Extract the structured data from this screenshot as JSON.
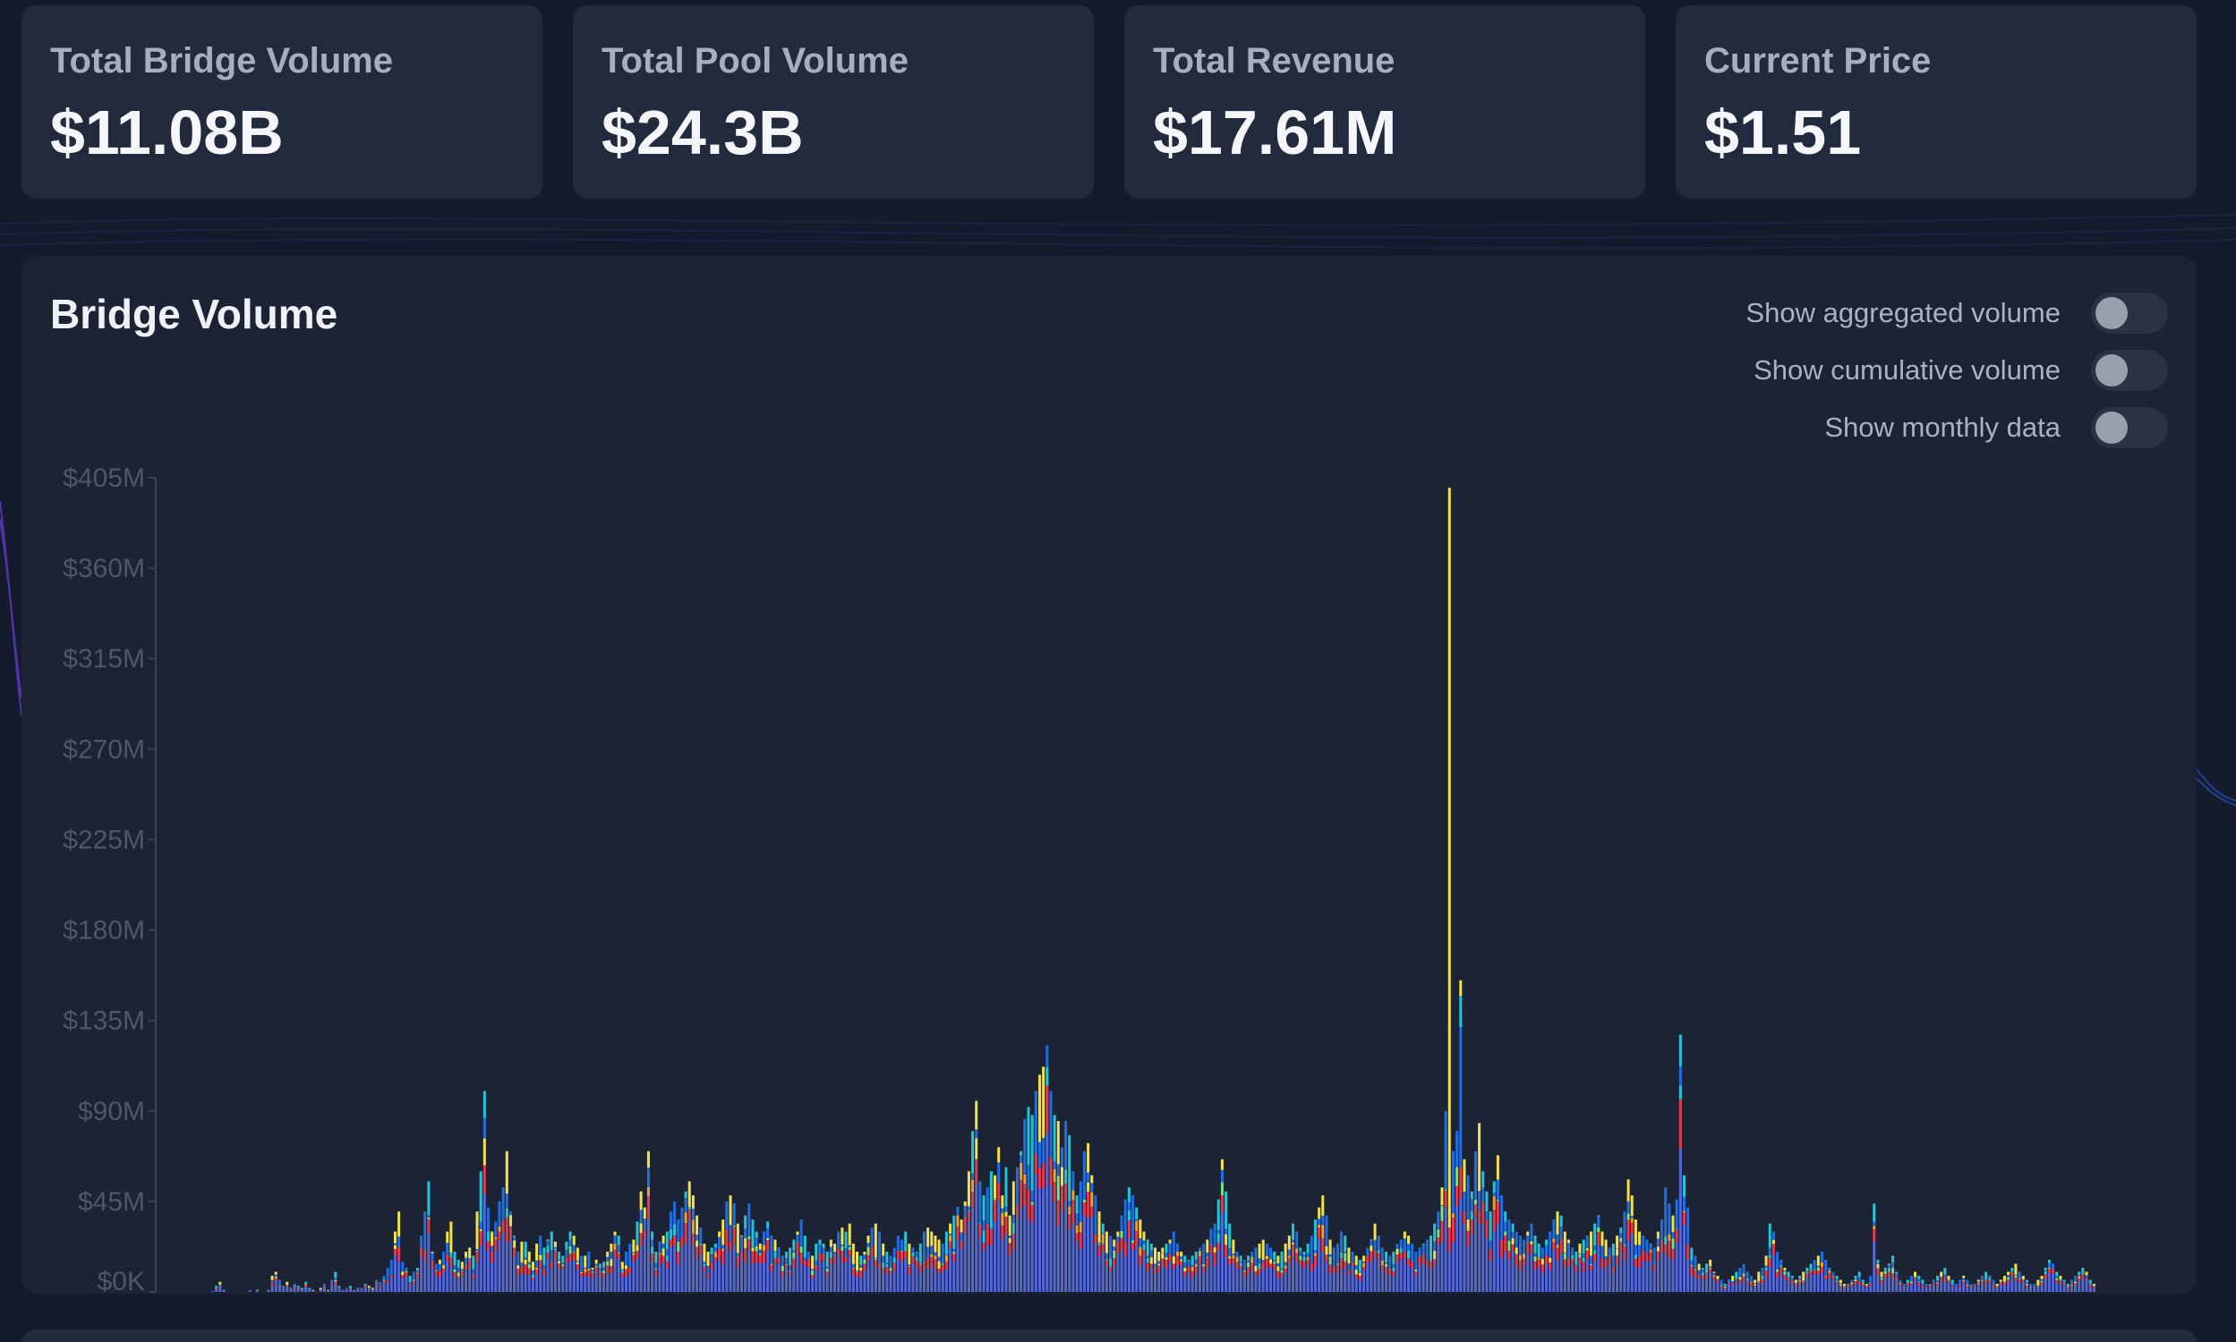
{
  "stats": [
    {
      "label": "Total Bridge Volume",
      "value": "$11.08B"
    },
    {
      "label": "Total Pool Volume",
      "value": "$24.3B"
    },
    {
      "label": "Total Revenue",
      "value": "$17.61M"
    },
    {
      "label": "Current Price",
      "value": "$1.51"
    }
  ],
  "chart": {
    "title": "Bridge Volume",
    "toggles": [
      {
        "label": "Show aggregated volume",
        "on": false
      },
      {
        "label": "Show cumulative volume",
        "on": false
      },
      {
        "label": "Show monthly data",
        "on": false
      }
    ]
  },
  "colors": {
    "background": "#141b2d",
    "card": "#222a3d",
    "chart_card": "#1c2334",
    "series": [
      "#5468d6",
      "#e53a4c",
      "#f0a030",
      "#f2e14a",
      "#1f6fe0",
      "#22c4d8",
      "#7fe07f",
      "#343c4e"
    ]
  },
  "chart_data": {
    "type": "bar",
    "stacked": true,
    "title": "Bridge Volume",
    "xlabel": "",
    "ylabel": "",
    "ylim": [
      0,
      405000000
    ],
    "y_ticks": [
      "$0K",
      "$45M",
      "$90M",
      "$135M",
      "$180M",
      "$225M",
      "$270M",
      "$315M",
      "$360M",
      "$405M"
    ],
    "grid": false,
    "unit": "USD",
    "bars_total_millions": [
      0.5,
      3,
      5,
      1,
      0,
      0,
      0,
      0,
      0,
      0,
      1,
      0,
      1,
      0,
      0,
      1,
      8,
      10,
      6,
      3,
      5,
      2,
      4,
      3,
      2,
      5,
      2,
      1,
      0,
      2,
      4,
      1,
      6,
      10,
      3,
      1,
      2,
      3,
      1,
      2,
      2,
      4,
      3,
      2,
      6,
      5,
      8,
      12,
      16,
      30,
      40,
      15,
      12,
      8,
      10,
      12,
      28,
      40,
      55,
      20,
      14,
      16,
      20,
      30,
      35,
      20,
      16,
      15,
      20,
      22,
      18,
      40,
      60,
      100,
      42,
      30,
      35,
      45,
      52,
      70,
      40,
      28,
      20,
      25,
      25,
      20,
      15,
      24,
      28,
      22,
      26,
      30,
      25,
      20,
      18,
      25,
      30,
      28,
      22,
      18,
      18,
      20,
      12,
      16,
      14,
      15,
      20,
      24,
      30,
      28,
      15,
      20,
      24,
      26,
      35,
      50,
      42,
      70,
      30,
      20,
      25,
      28,
      30,
      40,
      45,
      36,
      42,
      50,
      55,
      48,
      38,
      32,
      24,
      20,
      22,
      24,
      30,
      36,
      45,
      48,
      44,
      34,
      28,
      38,
      44,
      36,
      30,
      24,
      30,
      35,
      28,
      26,
      22,
      18,
      20,
      22,
      26,
      30,
      36,
      28,
      20,
      18,
      24,
      26,
      24,
      20,
      26,
      24,
      30,
      32,
      30,
      34,
      24,
      20,
      18,
      20,
      28,
      32,
      34,
      30,
      24,
      20,
      18,
      22,
      28,
      26,
      30,
      24,
      22,
      20,
      24,
      30,
      32,
      30,
      28,
      26,
      24,
      30,
      34,
      38,
      40,
      36,
      45,
      60,
      80,
      95,
      55,
      48,
      52,
      60,
      58,
      72,
      48,
      62,
      38,
      55,
      62,
      70,
      86,
      92,
      88,
      100,
      108,
      112,
      122,
      100,
      88,
      85,
      72,
      85,
      78,
      60,
      48,
      55,
      70,
      74,
      58,
      48,
      40,
      34,
      30,
      28,
      26,
      30,
      38,
      46,
      52,
      48,
      42,
      36,
      30,
      26,
      24,
      22,
      20,
      22,
      24,
      26,
      30,
      24,
      20,
      18,
      16,
      18,
      20,
      22,
      24,
      26,
      30,
      34,
      46,
      66,
      50,
      34,
      26,
      20,
      18,
      16,
      18,
      20,
      22,
      24,
      26,
      24,
      22,
      20,
      18,
      20,
      24,
      28,
      34,
      30,
      22,
      20,
      24,
      28,
      36,
      42,
      48,
      38,
      26,
      22,
      24,
      30,
      28,
      22,
      20,
      18,
      16,
      18,
      22,
      26,
      34,
      28,
      22,
      20,
      18,
      20,
      24,
      26,
      30,
      28,
      24,
      20,
      22,
      24,
      26,
      28,
      34,
      40,
      52,
      90,
      400,
      70,
      80,
      155,
      66,
      58,
      50,
      70,
      84,
      60,
      50,
      40,
      55,
      68,
      48,
      40,
      36,
      34,
      30,
      28,
      26,
      30,
      34,
      28,
      24,
      22,
      26,
      30,
      36,
      40,
      38,
      30,
      26,
      22,
      20,
      24,
      26,
      28,
      30,
      34,
      38,
      30,
      26,
      22,
      24,
      28,
      32,
      40,
      56,
      48,
      36,
      30,
      28,
      26,
      24,
      22,
      30,
      36,
      52,
      44,
      38,
      46,
      128,
      58,
      42,
      22,
      18,
      14,
      12,
      14,
      16,
      10,
      8,
      6,
      4,
      6,
      8,
      10,
      12,
      14,
      10,
      8,
      6,
      10,
      12,
      18,
      34,
      30,
      20,
      16,
      12,
      10,
      8,
      6,
      8,
      10,
      12,
      14,
      16,
      18,
      20,
      16,
      12,
      10,
      8,
      6,
      4,
      4,
      6,
      8,
      10,
      6,
      4,
      8,
      44,
      16,
      10,
      12,
      14,
      18,
      10,
      6,
      4,
      6,
      8,
      10,
      8,
      6,
      4,
      4,
      6,
      8,
      10,
      12,
      8,
      6,
      4,
      6,
      8,
      6,
      4,
      4,
      6,
      8,
      10,
      8,
      6,
      4,
      6,
      8,
      10,
      12,
      14,
      10,
      8,
      6,
      4,
      4,
      6,
      8,
      12,
      16,
      14,
      10,
      8,
      6,
      4,
      6,
      8,
      10,
      12,
      10,
      6,
      4
    ]
  }
}
